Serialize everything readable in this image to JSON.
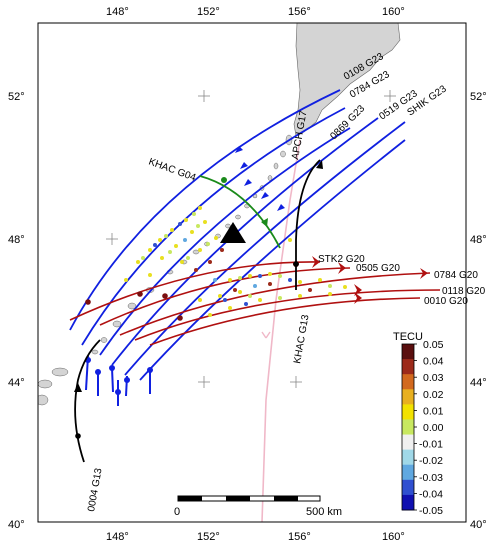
{
  "map": {
    "lon_ticks": [
      "148°",
      "152°",
      "156°",
      "160°"
    ],
    "lat_ticks": [
      "52°",
      "48°",
      "44°",
      "40°"
    ],
    "lon_range": [
      145,
      163
    ],
    "lat_range": [
      40,
      54.5
    ]
  },
  "station": {
    "name": "KHAC",
    "symbol": "triangle"
  },
  "tracks": [
    {
      "label": "0108 G23",
      "color": "#1020e0"
    },
    {
      "label": "0784 G23",
      "color": "#1020e0"
    },
    {
      "label": "0869 G23",
      "color": "#1020e0"
    },
    {
      "label": "0519 G23",
      "color": "#1020e0"
    },
    {
      "label": "SHIK G23",
      "color": "#1020e0"
    },
    {
      "label": "APCH G17",
      "color": "#f0b8c8"
    },
    {
      "label": "KHAC G04",
      "color": "#1a8a1a"
    },
    {
      "label": "STK2 G20",
      "color": "#b01010"
    },
    {
      "label": "0505 G20",
      "color": "#b01010"
    },
    {
      "label": "0784 G20",
      "color": "#b01010"
    },
    {
      "label": "0118 G20",
      "color": "#b01010"
    },
    {
      "label": "0010 G20",
      "color": "#b01010"
    },
    {
      "label": "KHAC G13",
      "color": "#000000"
    },
    {
      "label": "0004 G13",
      "color": "#000000"
    }
  ],
  "colorbar": {
    "title": "TECU",
    "ticks": [
      "0.05",
      "0.04",
      "0.03",
      "0.02",
      "0.01",
      "0.00",
      "-0.01",
      "-0.02",
      "-0.03",
      "-0.04",
      "-0.05"
    ],
    "colors": [
      "#5a0f0f",
      "#9c2a1a",
      "#d2691e",
      "#e8b020",
      "#f2e200",
      "#c8e860",
      "#f0f0f0",
      "#a0d8e8",
      "#60a8e0",
      "#3050d0",
      "#1010b0"
    ]
  },
  "scalebar": {
    "start_label": "0",
    "end_label": "500 km"
  }
}
